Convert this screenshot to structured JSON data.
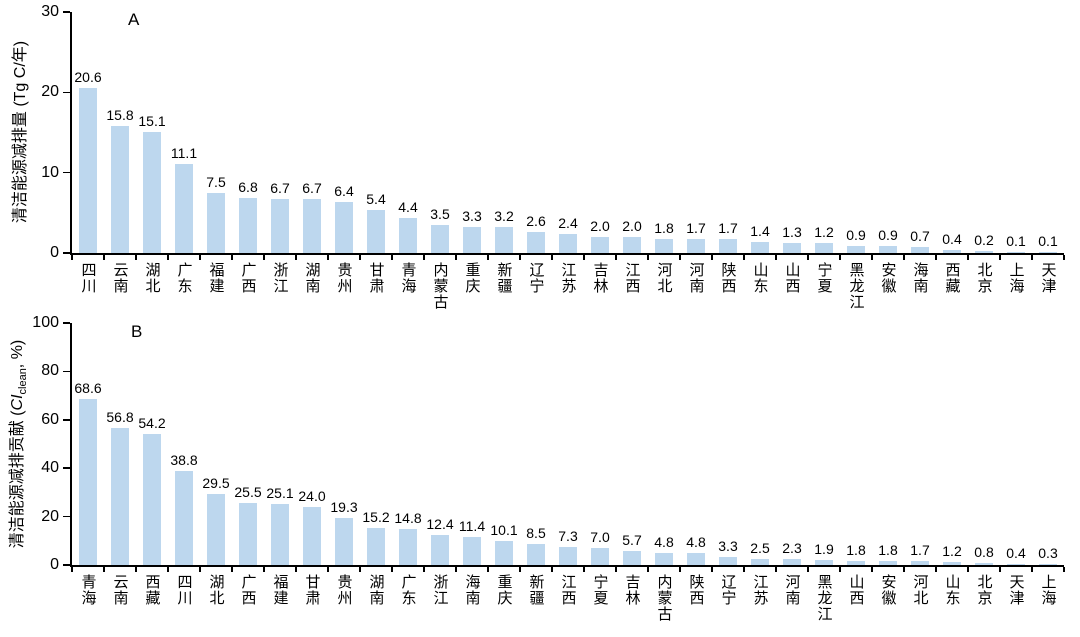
{
  "figure": {
    "background_color": "#ffffff",
    "bar_color": "#BDD7EE",
    "axis_color": "#000000"
  },
  "chart_data": [
    {
      "type": "bar",
      "panel_label": "A",
      "ylabel": "清洁能源减排量 (Tg C/年)",
      "xlabel": "",
      "ylim": [
        0,
        30
      ],
      "yticks": [
        0,
        10,
        20,
        30
      ],
      "grid": false,
      "legend": null,
      "bar_color": "#BDD7EE",
      "categories": [
        "四川",
        "云南",
        "湖北",
        "广东",
        "福建",
        "广西",
        "浙江",
        "湖南",
        "贵州",
        "甘肃",
        "青海",
        "内蒙古",
        "重庆",
        "新疆",
        "辽宁",
        "江苏",
        "吉林",
        "江西",
        "河北",
        "河南",
        "陕西",
        "山东",
        "山西",
        "宁夏",
        "黑龙江",
        "安徽",
        "海南",
        "西藏",
        "北京",
        "上海",
        "天津"
      ],
      "values": [
        20.6,
        15.8,
        15.1,
        11.1,
        7.5,
        6.8,
        6.7,
        6.7,
        6.4,
        5.4,
        4.4,
        3.5,
        3.3,
        3.2,
        2.6,
        2.4,
        2.0,
        2.0,
        1.8,
        1.7,
        1.7,
        1.4,
        1.3,
        1.2,
        0.9,
        0.9,
        0.7,
        0.4,
        0.2,
        0.1,
        0.1
      ]
    },
    {
      "type": "bar",
      "panel_label": "B",
      "ylabel": "清洁能源减排贡献 (CIclean, %)",
      "ylabel_parts": {
        "prefix": "清洁能源减排贡献 (",
        "var": "CI",
        "sub": "clean",
        "suffix": ", %)"
      },
      "xlabel": "",
      "ylim": [
        0,
        100
      ],
      "yticks": [
        0,
        20,
        40,
        60,
        80,
        100
      ],
      "grid": false,
      "legend": null,
      "bar_color": "#BDD7EE",
      "categories": [
        "青海",
        "云南",
        "西藏",
        "四川",
        "湖北",
        "广西",
        "福建",
        "甘肃",
        "贵州",
        "湖南",
        "广东",
        "浙江",
        "海南",
        "重庆",
        "新疆",
        "江西",
        "宁夏",
        "吉林",
        "内蒙古",
        "陕西",
        "辽宁",
        "江苏",
        "河南",
        "黑龙江",
        "山西",
        "安徽",
        "河北",
        "山东",
        "北京",
        "天津",
        "上海"
      ],
      "values": [
        68.6,
        56.8,
        54.2,
        38.8,
        29.5,
        25.5,
        25.1,
        24.0,
        19.3,
        15.2,
        14.8,
        12.4,
        11.4,
        10.1,
        8.5,
        7.3,
        7.0,
        5.7,
        4.8,
        4.8,
        3.3,
        2.5,
        2.3,
        1.9,
        1.8,
        1.8,
        1.7,
        1.2,
        0.8,
        0.4,
        0.3
      ]
    }
  ]
}
